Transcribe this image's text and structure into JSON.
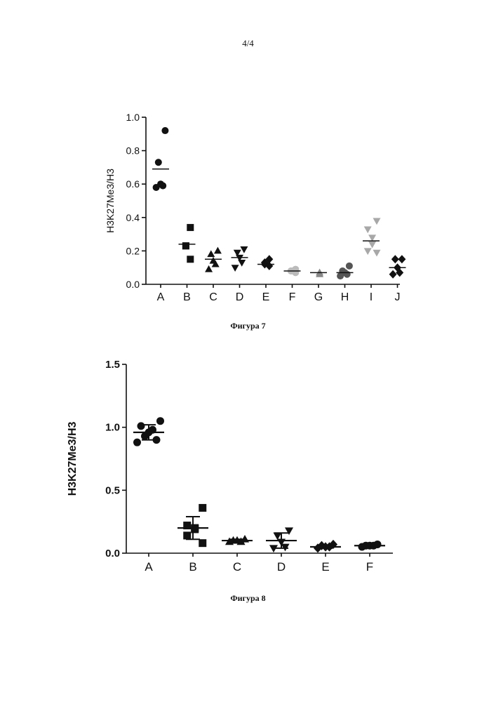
{
  "page_number": "4/4",
  "captions": {
    "fig7": "Фигура 7",
    "fig8": "Фигура 8"
  },
  "chart_data": [
    {
      "type": "scatter",
      "ylabel": "H3K27Me3/H3",
      "xlabel": "",
      "categories": [
        "A",
        "B",
        "C",
        "D",
        "E",
        "F",
        "G",
        "H",
        "I",
        "J"
      ],
      "ylim": [
        0,
        1.0
      ],
      "yticks": [
        "0.0",
        "0.2",
        "0.4",
        "0.6",
        "0.8",
        "1.0"
      ],
      "grid": false,
      "series": [
        {
          "category": "A",
          "marker": "circle",
          "color": "#111111",
          "points": [
            0.92,
            0.73,
            0.6,
            0.59,
            0.58
          ],
          "mean": 0.69
        },
        {
          "category": "B",
          "marker": "square",
          "color": "#111111",
          "points": [
            0.34,
            0.23,
            0.23,
            0.15
          ],
          "mean": 0.24
        },
        {
          "category": "C",
          "marker": "triangle-up",
          "color": "#111111",
          "points": [
            0.2,
            0.18,
            0.14,
            0.12,
            0.09
          ],
          "mean": 0.15
        },
        {
          "category": "D",
          "marker": "triangle-down",
          "color": "#111111",
          "points": [
            0.21,
            0.19,
            0.16,
            0.13,
            0.1
          ],
          "mean": 0.16
        },
        {
          "category": "E",
          "marker": "diamond",
          "color": "#111111",
          "points": [
            0.15,
            0.13,
            0.12,
            0.11
          ],
          "mean": 0.12
        },
        {
          "category": "F",
          "marker": "circle",
          "color": "#bbbbbb",
          "points": [
            0.09,
            0.08,
            0.08,
            0.07
          ],
          "mean": 0.08
        },
        {
          "category": "G",
          "marker": "triangle-up",
          "color": "#888888",
          "points": [
            0.07,
            0.06
          ],
          "mean": 0.07
        },
        {
          "category": "H",
          "marker": "circle",
          "color": "#555555",
          "points": [
            0.11,
            0.08,
            0.07,
            0.06,
            0.05
          ],
          "mean": 0.07
        },
        {
          "category": "I",
          "marker": "triangle-down",
          "color": "#a8a8a8",
          "points": [
            0.38,
            0.33,
            0.28,
            0.24,
            0.2,
            0.19
          ],
          "mean": 0.26
        },
        {
          "category": "J",
          "marker": "diamond",
          "color": "#111111",
          "points": [
            0.15,
            0.15,
            0.1,
            0.07,
            0.06
          ],
          "mean": 0.1
        }
      ]
    },
    {
      "type": "scatter",
      "ylabel": "H3K27Me3/H3",
      "xlabel": "",
      "categories": [
        "A",
        "B",
        "C",
        "D",
        "E",
        "F"
      ],
      "ylim": [
        0,
        1.5
      ],
      "yticks": [
        "0.0",
        "0.5",
        "1.0",
        "1.5"
      ],
      "grid": false,
      "series": [
        {
          "category": "A",
          "marker": "circle",
          "color": "#111111",
          "points": [
            1.05,
            1.01,
            0.98,
            0.96,
            0.93,
            0.9,
            0.88
          ],
          "mean": 0.96,
          "sd": 0.06
        },
        {
          "category": "B",
          "marker": "square",
          "color": "#111111",
          "points": [
            0.36,
            0.22,
            0.2,
            0.19,
            0.14,
            0.08
          ],
          "mean": 0.2,
          "sd": 0.09
        },
        {
          "category": "C",
          "marker": "triangle-up",
          "color": "#111111",
          "points": [
            0.11,
            0.1,
            0.1,
            0.09,
            0.09
          ],
          "mean": 0.1,
          "sd": 0.01
        },
        {
          "category": "D",
          "marker": "triangle-down",
          "color": "#111111",
          "points": [
            0.18,
            0.14,
            0.09,
            0.05,
            0.04
          ],
          "mean": 0.1,
          "sd": 0.06
        },
        {
          "category": "E",
          "marker": "diamond",
          "color": "#111111",
          "points": [
            0.07,
            0.06,
            0.05,
            0.05,
            0.04
          ],
          "mean": 0.05,
          "sd": 0.01
        },
        {
          "category": "F",
          "marker": "circle",
          "color": "#111111",
          "points": [
            0.07,
            0.06,
            0.06,
            0.06,
            0.05
          ],
          "mean": 0.06,
          "sd": 0.01
        }
      ]
    }
  ]
}
